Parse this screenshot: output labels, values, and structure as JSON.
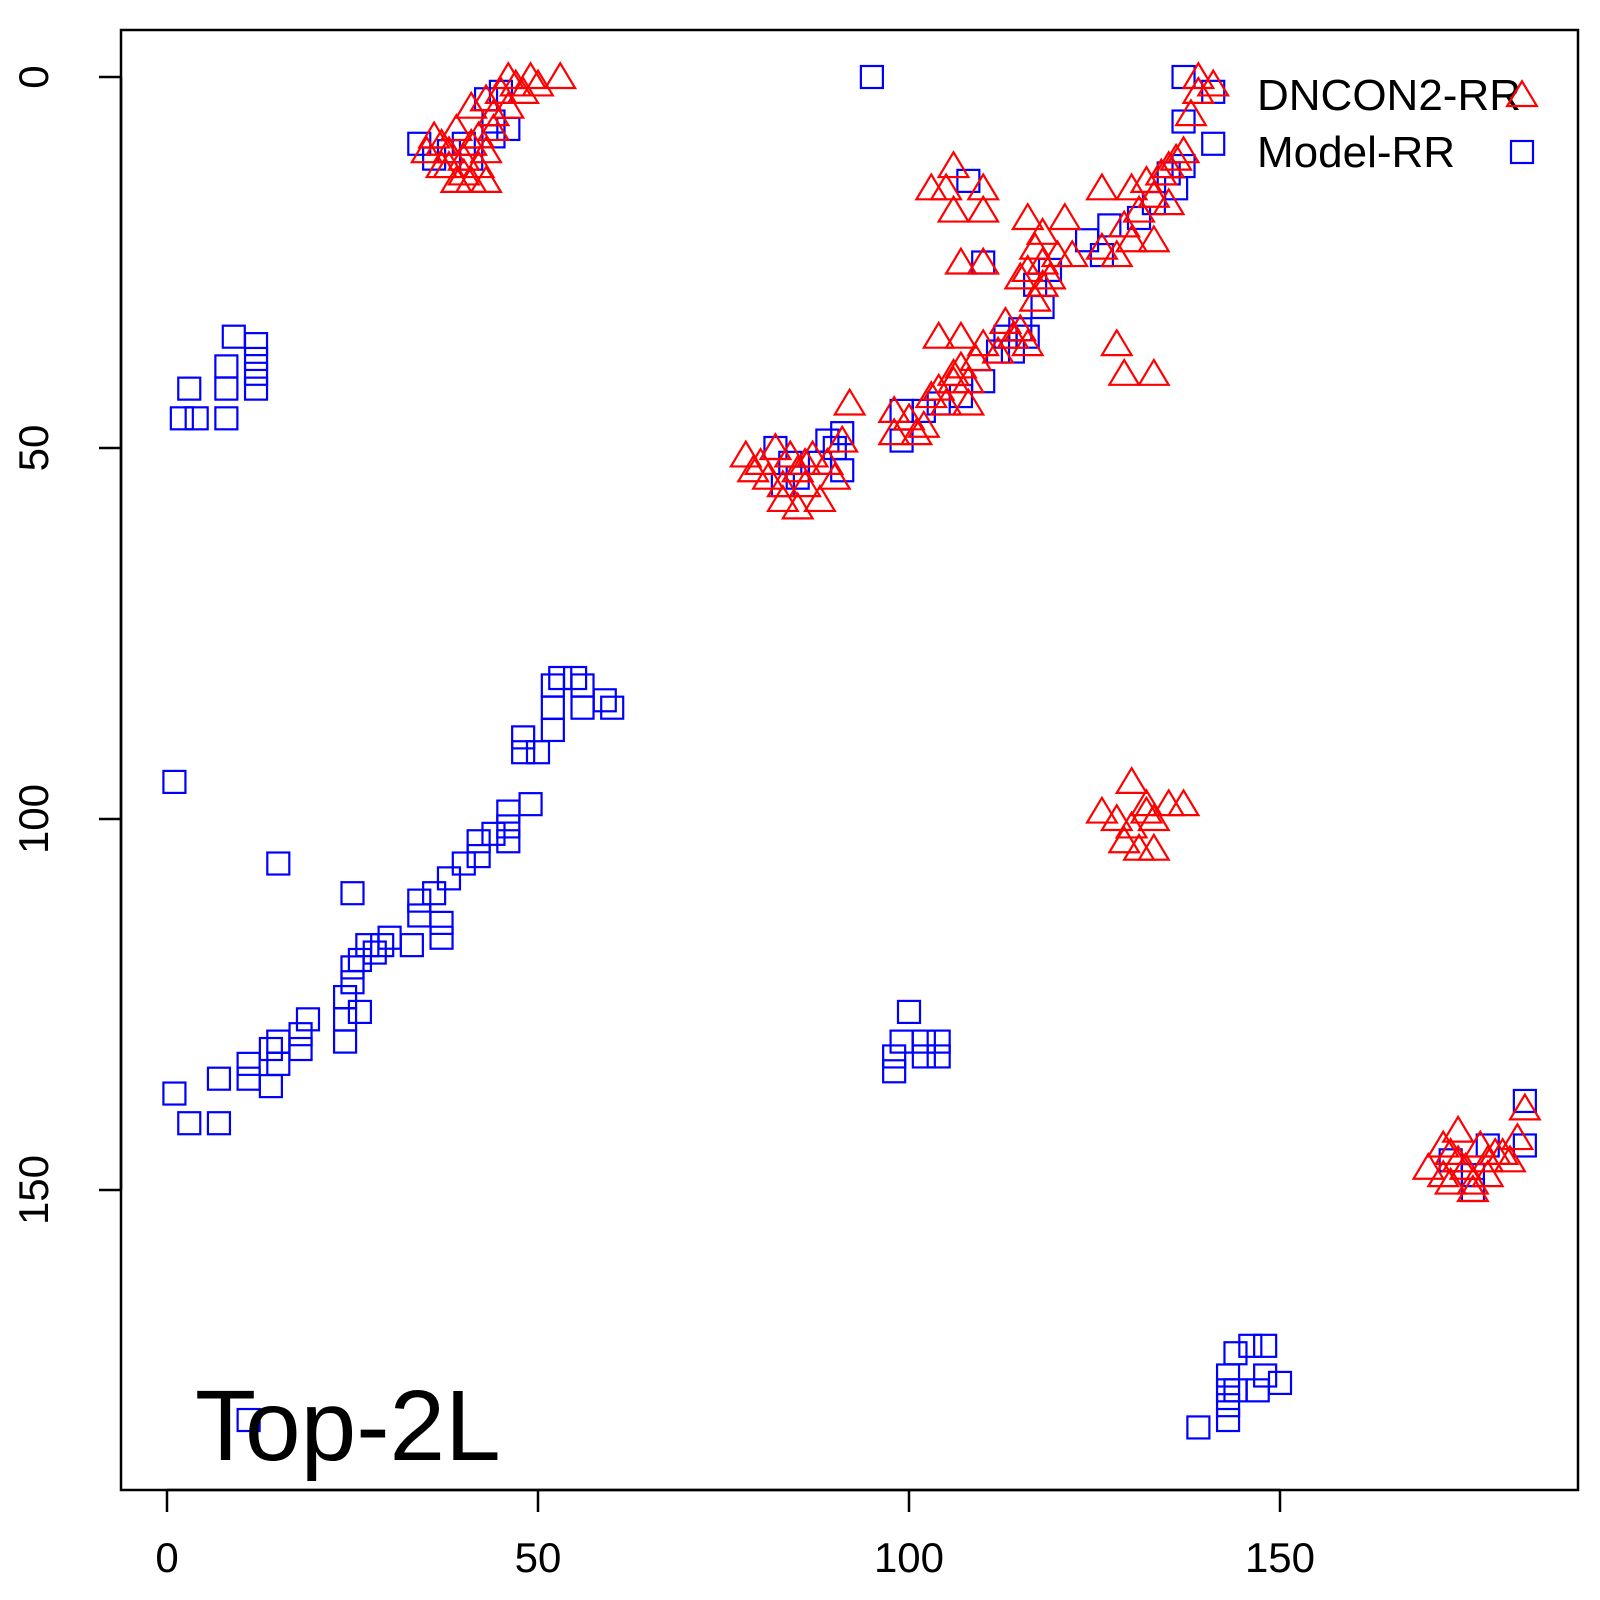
{
  "chart_data": {
    "type": "scatter",
    "title": "",
    "xlabel": "",
    "ylabel": "",
    "xlim": [
      -6,
      190
    ],
    "ylim": [
      190,
      -6
    ],
    "y_inverted": true,
    "x_ticks": [
      0,
      50,
      100,
      150
    ],
    "y_ticks": [
      0,
      50,
      100,
      150
    ],
    "x_tick_labels": [
      "0",
      "50",
      "100",
      "150"
    ],
    "y_tick_labels": [
      "0",
      "50",
      "100",
      "150"
    ],
    "grid": false,
    "legend_position": "top-right",
    "annotation": "Top-2L",
    "series": [
      {
        "name": "DNCON2-RR",
        "marker": "triangle",
        "color": "#ff0000",
        "points": [
          [
            36,
            8
          ],
          [
            37,
            9
          ],
          [
            38,
            10
          ],
          [
            39,
            7
          ],
          [
            40,
            11
          ],
          [
            41,
            9
          ],
          [
            42,
            8
          ],
          [
            43,
            10
          ],
          [
            38,
            12
          ],
          [
            40,
            13
          ],
          [
            42,
            12
          ],
          [
            44,
            7
          ],
          [
            41,
            4
          ],
          [
            43,
            3
          ],
          [
            45,
            2
          ],
          [
            46,
            0
          ],
          [
            47,
            1
          ],
          [
            49,
            0
          ],
          [
            50,
            1
          ],
          [
            53,
            0
          ],
          [
            39,
            14
          ],
          [
            41,
            14
          ],
          [
            43,
            14
          ],
          [
            35,
            10
          ],
          [
            37,
            12
          ],
          [
            44,
            5
          ],
          [
            46,
            4
          ],
          [
            48,
            2
          ],
          [
            78,
            51
          ],
          [
            80,
            52
          ],
          [
            82,
            50
          ],
          [
            84,
            51
          ],
          [
            86,
            52
          ],
          [
            81,
            54
          ],
          [
            83,
            55
          ],
          [
            85,
            53
          ],
          [
            87,
            51
          ],
          [
            89,
            52
          ],
          [
            91,
            49
          ],
          [
            92,
            44
          ],
          [
            83,
            57
          ],
          [
            85,
            58
          ],
          [
            88,
            57
          ],
          [
            90,
            54
          ],
          [
            79,
            53
          ],
          [
            86,
            55
          ],
          [
            98,
            45
          ],
          [
            100,
            46
          ],
          [
            102,
            47
          ],
          [
            103,
            43
          ],
          [
            105,
            44
          ],
          [
            104,
            42
          ],
          [
            106,
            40
          ],
          [
            108,
            41
          ],
          [
            107,
            39
          ],
          [
            109,
            38
          ],
          [
            110,
            36
          ],
          [
            112,
            37
          ],
          [
            114,
            35
          ],
          [
            113,
            33
          ],
          [
            115,
            34
          ],
          [
            116,
            36
          ],
          [
            117,
            30
          ],
          [
            118,
            28
          ],
          [
            119,
            27
          ],
          [
            116,
            26
          ],
          [
            118,
            25
          ],
          [
            120,
            24
          ],
          [
            122,
            24
          ],
          [
            115,
            27
          ],
          [
            117,
            23
          ],
          [
            116,
            19
          ],
          [
            118,
            21
          ],
          [
            121,
            19
          ],
          [
            126,
            23
          ],
          [
            128,
            24
          ],
          [
            130,
            22
          ],
          [
            129,
            20
          ],
          [
            131,
            18
          ],
          [
            133,
            16
          ],
          [
            132,
            14
          ],
          [
            134,
            13
          ],
          [
            135,
            12
          ],
          [
            136,
            11
          ],
          [
            137,
            10
          ],
          [
            138,
            5
          ],
          [
            139,
            2
          ],
          [
            141,
            1
          ],
          [
            139,
            0
          ],
          [
            106,
            12
          ],
          [
            103,
            15
          ],
          [
            105,
            15
          ],
          [
            110,
            15
          ],
          [
            106,
            18
          ],
          [
            110,
            18
          ],
          [
            107,
            25
          ],
          [
            110,
            25
          ],
          [
            104,
            35
          ],
          [
            107,
            35
          ],
          [
            128,
            36
          ],
          [
            129,
            40
          ],
          [
            133,
            40
          ],
          [
            126,
            15
          ],
          [
            130,
            15
          ],
          [
            133,
            22
          ],
          [
            135,
            17
          ],
          [
            98,
            48
          ],
          [
            101,
            48
          ],
          [
            106,
            41
          ],
          [
            108,
            44
          ],
          [
            126,
            99
          ],
          [
            128,
            100
          ],
          [
            130,
            101
          ],
          [
            132,
            99
          ],
          [
            133,
            100
          ],
          [
            135,
            98
          ],
          [
            137,
            98
          ],
          [
            129,
            103
          ],
          [
            131,
            104
          ],
          [
            133,
            104
          ],
          [
            130,
            95
          ],
          [
            132,
            98
          ],
          [
            170,
            147
          ],
          [
            172,
            148
          ],
          [
            173,
            145
          ],
          [
            174,
            146
          ],
          [
            175,
            147
          ],
          [
            176,
            149
          ],
          [
            177,
            144
          ],
          [
            178,
            146
          ],
          [
            179,
            145
          ],
          [
            172,
            144
          ],
          [
            174,
            142
          ],
          [
            176,
            150
          ],
          [
            180,
            145
          ],
          [
            182,
            143
          ],
          [
            183,
            139
          ],
          [
            181,
            146
          ],
          [
            178,
            148
          ],
          [
            173,
            149
          ]
        ]
      },
      {
        "name": "Model-RR",
        "marker": "square",
        "color": "#0000ff",
        "points": [
          [
            95,
            0
          ],
          [
            137,
            0
          ],
          [
            141,
            2
          ],
          [
            137,
            6
          ],
          [
            141,
            9
          ],
          [
            43,
            3
          ],
          [
            45,
            2
          ],
          [
            44,
            6
          ],
          [
            46,
            7
          ],
          [
            34,
            9
          ],
          [
            36,
            11
          ],
          [
            38,
            10
          ],
          [
            41,
            11
          ],
          [
            40,
            9
          ],
          [
            44,
            8
          ],
          [
            9,
            35
          ],
          [
            12,
            36
          ],
          [
            12,
            38
          ],
          [
            8,
            39
          ],
          [
            12,
            40
          ],
          [
            3,
            42
          ],
          [
            8,
            42
          ],
          [
            12,
            42
          ],
          [
            2,
            46
          ],
          [
            4,
            46
          ],
          [
            8,
            46
          ],
          [
            82,
            50
          ],
          [
            84,
            52
          ],
          [
            85,
            54
          ],
          [
            83,
            55
          ],
          [
            88,
            52
          ],
          [
            90,
            50
          ],
          [
            91,
            48
          ],
          [
            89,
            49
          ],
          [
            91,
            53
          ],
          [
            99,
            45
          ],
          [
            99,
            49
          ],
          [
            102,
            45
          ],
          [
            104,
            44
          ],
          [
            107,
            43
          ],
          [
            110,
            41
          ],
          [
            112,
            37
          ],
          [
            115,
            34
          ],
          [
            114,
            37
          ],
          [
            118,
            31
          ],
          [
            117,
            28
          ],
          [
            119,
            26
          ],
          [
            124,
            22
          ],
          [
            126,
            24
          ],
          [
            127,
            20
          ],
          [
            131,
            19
          ],
          [
            133,
            17
          ],
          [
            136,
            15
          ],
          [
            135,
            13
          ],
          [
            137,
            12
          ],
          [
            108,
            14
          ],
          [
            110,
            25
          ],
          [
            116,
            35
          ],
          [
            113,
            35
          ],
          [
            1,
            95
          ],
          [
            49,
            98
          ],
          [
            46,
            99
          ],
          [
            46,
            101
          ],
          [
            46,
            103
          ],
          [
            44,
            102
          ],
          [
            42,
            103
          ],
          [
            42,
            105
          ],
          [
            40,
            106
          ],
          [
            38,
            108
          ],
          [
            36,
            110
          ],
          [
            34,
            111
          ],
          [
            34,
            113
          ],
          [
            37,
            114
          ],
          [
            37,
            116
          ],
          [
            33,
            117
          ],
          [
            30,
            116
          ],
          [
            29,
            117
          ],
          [
            28,
            118
          ],
          [
            27,
            117
          ],
          [
            26,
            119
          ],
          [
            25,
            120
          ],
          [
            25,
            122
          ],
          [
            24,
            124
          ],
          [
            25,
            110
          ],
          [
            15,
            106
          ],
          [
            48,
            89
          ],
          [
            48,
            91
          ],
          [
            50,
            91
          ],
          [
            52,
            88
          ],
          [
            52,
            85
          ],
          [
            52,
            82
          ],
          [
            53,
            81
          ],
          [
            55,
            81
          ],
          [
            56,
            82
          ],
          [
            56,
            85
          ],
          [
            59,
            84
          ],
          [
            60,
            85
          ],
          [
            26,
            126
          ],
          [
            24,
            127
          ],
          [
            24,
            130
          ],
          [
            19,
            127
          ],
          [
            18,
            129
          ],
          [
            18,
            131
          ],
          [
            15,
            130
          ],
          [
            14,
            131
          ],
          [
            15,
            133
          ],
          [
            14,
            136
          ],
          [
            11,
            133
          ],
          [
            11,
            135
          ],
          [
            7,
            135
          ],
          [
            1,
            137
          ],
          [
            3,
            141
          ],
          [
            7,
            141
          ],
          [
            11,
            181
          ],
          [
            100,
            126
          ],
          [
            99,
            130
          ],
          [
            98,
            132
          ],
          [
            98,
            134
          ],
          [
            102,
            130
          ],
          [
            102,
            132
          ],
          [
            104,
            130
          ],
          [
            104,
            132
          ],
          [
            173,
            146
          ],
          [
            176,
            148
          ],
          [
            178,
            144
          ],
          [
            176,
            150
          ],
          [
            183,
            138
          ],
          [
            183,
            144
          ],
          [
            144,
            172
          ],
          [
            146,
            171
          ],
          [
            148,
            171
          ],
          [
            143,
            175
          ],
          [
            143,
            177
          ],
          [
            144,
            177
          ],
          [
            143,
            179
          ],
          [
            143,
            181
          ],
          [
            148,
            175
          ],
          [
            150,
            176
          ],
          [
            147,
            177
          ],
          [
            139,
            182
          ]
        ]
      }
    ]
  }
}
